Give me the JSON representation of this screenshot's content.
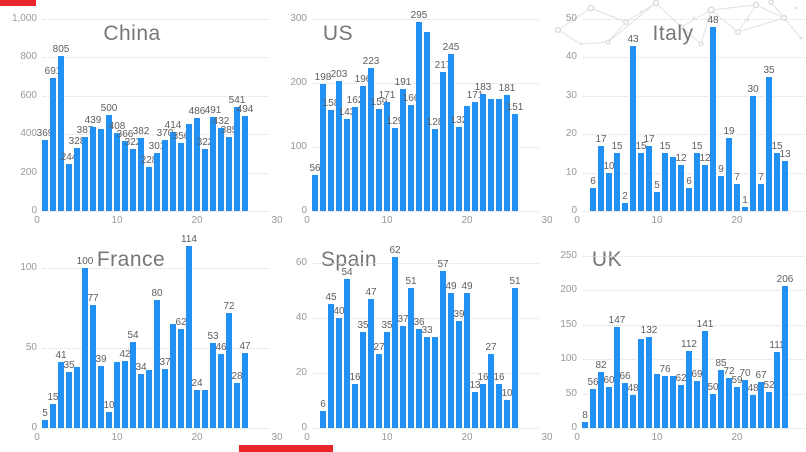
{
  "colors": {
    "background": "#FFFFFF",
    "bar": "#2192F3",
    "grid_line": "#DCDCDC",
    "axis_label": "#999999",
    "data_label": "#5E5E5E",
    "title": "#777777",
    "red_marker": "#E8262B"
  },
  "chart_data": [
    {
      "type": "bar",
      "title": "China",
      "title_center_x": 132,
      "first_day": 1,
      "values": [
        369,
        691,
        805,
        244,
        328,
        387,
        439,
        428,
        500,
        408,
        366,
        322,
        382,
        228,
        301,
        370,
        414,
        356,
        455,
        486,
        322,
        491,
        432,
        385,
        541,
        494
      ],
      "unlabeled_indices": [
        7,
        18
      ],
      "ylim": [
        0,
        1000
      ],
      "plot_max": 1000,
      "yticks": [
        {
          "value": 0,
          "label": "0"
        },
        {
          "value": 200,
          "label": "200"
        },
        {
          "value": 400,
          "label": "400"
        },
        {
          "value": 600,
          "label": "600"
        },
        {
          "value": 800,
          "label": "800"
        },
        {
          "value": 1000,
          "label": "1,000"
        }
      ],
      "xticks": [
        0,
        10,
        20,
        30
      ],
      "grid": "dotted",
      "legend": "none"
    },
    {
      "type": "bar",
      "title": "US",
      "title_center_x": 68,
      "first_day": 1,
      "values": [
        56,
        198,
        158,
        203,
        143,
        162,
        196,
        223,
        159,
        171,
        129,
        191,
        166,
        295,
        280,
        128,
        217,
        245,
        132,
        164,
        171,
        183,
        175,
        175,
        181,
        151
      ],
      "unlabeled_indices": [
        14,
        19,
        22,
        23
      ],
      "ylim": [
        0,
        300
      ],
      "plot_max": 300,
      "yticks": [
        {
          "value": 0,
          "label": "0"
        },
        {
          "value": 100,
          "label": "100"
        },
        {
          "value": 200,
          "label": "200"
        },
        {
          "value": 300,
          "label": "300"
        }
      ],
      "xticks": [
        0,
        10,
        20,
        30
      ],
      "grid": "dotted",
      "legend": "none"
    },
    {
      "type": "bar",
      "title": "Italy",
      "title_center_x": 133,
      "first_day": 2,
      "values": [
        6,
        17,
        10,
        15,
        2,
        43,
        15,
        17,
        5,
        15,
        14,
        12,
        6,
        15,
        12,
        48,
        9,
        19,
        7,
        1,
        30,
        7,
        35,
        15,
        13
      ],
      "unlabeled_indices": [
        10
      ],
      "ylim": [
        0,
        50
      ],
      "plot_max": 50,
      "yticks": [
        {
          "value": 0,
          "label": "0"
        },
        {
          "value": 10,
          "label": "10"
        },
        {
          "value": 20,
          "label": "20"
        },
        {
          "value": 30,
          "label": "30"
        },
        {
          "value": 40,
          "label": "40"
        },
        {
          "value": 50,
          "label": "50"
        }
      ],
      "xticks": [
        0,
        10,
        20,
        30
      ],
      "grid": "dotted",
      "legend": "none"
    },
    {
      "type": "bar",
      "title": "France",
      "title_center_x": 131,
      "first_day": 1,
      "values": [
        5,
        15,
        41,
        35,
        38,
        100,
        77,
        39,
        10,
        41,
        42,
        54,
        34,
        36,
        80,
        37,
        65,
        62,
        114,
        24,
        24,
        53,
        46,
        72,
        28,
        47
      ],
      "unlabeled_indices": [
        4,
        9,
        13,
        16,
        20
      ],
      "ylim": [
        0,
        100
      ],
      "plot_max": 114.5,
      "yticks": [
        {
          "value": 0,
          "label": "0"
        },
        {
          "value": 50,
          "label": "50"
        },
        {
          "value": 100,
          "label": "100"
        }
      ],
      "xticks": [
        0,
        10,
        20,
        30
      ],
      "grid": "dotted",
      "legend": "none"
    },
    {
      "type": "bar",
      "title": "Spain",
      "title_center_x": 79,
      "first_day": 2,
      "values": [
        6,
        45,
        40,
        54,
        16,
        35,
        47,
        27,
        35,
        62,
        37,
        51,
        36,
        33,
        33,
        57,
        49,
        39,
        49,
        13,
        16,
        27,
        16,
        10,
        51
      ],
      "unlabeled_indices": [
        14
      ],
      "ylim": [
        0,
        60
      ],
      "plot_max": 66.5,
      "yticks": [
        {
          "value": 0,
          "label": "0"
        },
        {
          "value": 20,
          "label": "20"
        },
        {
          "value": 40,
          "label": "40"
        },
        {
          "value": 60,
          "label": "60"
        }
      ],
      "xticks": [
        0,
        10,
        20,
        30
      ],
      "grid": "dotted",
      "legend": "none"
    },
    {
      "type": "bar",
      "title": "UK",
      "title_center_x": 67,
      "first_day": 1,
      "values": [
        8,
        56,
        82,
        60,
        147,
        66,
        48,
        129,
        132,
        79,
        76,
        75,
        62,
        112,
        69,
        141,
        50,
        85,
        72,
        59,
        70,
        48,
        67,
        52,
        111,
        206
      ],
      "unlabeled_indices": [
        7,
        9,
        11
      ],
      "ylim": [
        0,
        250
      ],
      "plot_max": 266,
      "yticks": [
        {
          "value": 0,
          "label": "0"
        },
        {
          "value": 50,
          "label": "50"
        },
        {
          "value": 100,
          "label": "100"
        },
        {
          "value": 150,
          "label": "150"
        },
        {
          "value": 200,
          "label": "200"
        },
        {
          "value": 250,
          "label": "250"
        }
      ],
      "xticks": [
        0,
        10,
        20,
        30
      ],
      "grid": "dotted",
      "legend": "none"
    }
  ]
}
